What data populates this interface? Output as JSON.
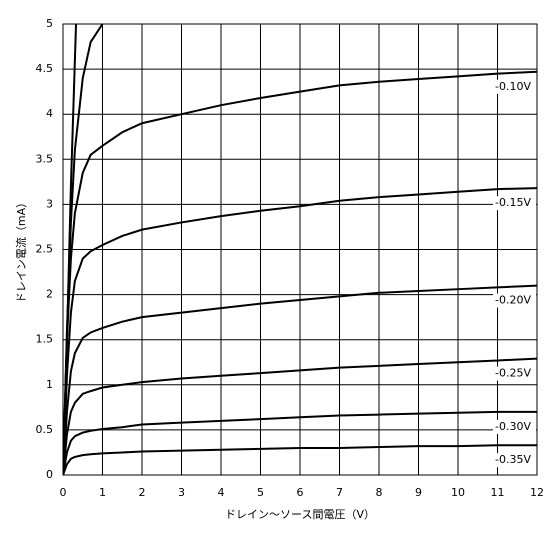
{
  "chart_data": {
    "type": "line",
    "xlabel": "ドレイン～ソース間電圧（V）",
    "ylabel": "ドレイン電流（mA）",
    "xlim": [
      0,
      12
    ],
    "ylim": [
      0,
      5
    ],
    "xticks": [
      0,
      1,
      2,
      3,
      4,
      5,
      6,
      7,
      8,
      9,
      10,
      11,
      12
    ],
    "yticks": [
      0,
      0.5,
      1,
      1.5,
      2,
      2.5,
      3,
      3.5,
      4,
      4.5,
      5
    ],
    "grid": true,
    "series": [
      {
        "color": "#000000",
        "x": [
          0,
          0.1,
          0.2,
          0.33
        ],
        "values": [
          0,
          1.5,
          3.2,
          5
        ]
      },
      {
        "color": "#000000",
        "x": [
          0,
          0.1,
          0.2,
          0.3,
          0.5,
          0.7,
          1.0
        ],
        "values": [
          0,
          1.6,
          2.8,
          3.6,
          4.4,
          4.8,
          5.0
        ]
      },
      {
        "name": "-0.10V",
        "color": "#000000",
        "x": [
          0,
          0.1,
          0.2,
          0.3,
          0.5,
          0.7,
          1,
          1.5,
          2,
          3,
          4,
          5,
          6,
          7,
          8,
          9,
          10,
          11,
          12
        ],
        "values": [
          0,
          1.5,
          2.4,
          2.9,
          3.35,
          3.55,
          3.65,
          3.8,
          3.9,
          4.0,
          4.1,
          4.18,
          4.25,
          4.32,
          4.36,
          4.39,
          4.42,
          4.45,
          4.47
        ]
      },
      {
        "name": "-0.15V",
        "color": "#000000",
        "x": [
          0,
          0.1,
          0.2,
          0.3,
          0.5,
          0.7,
          1,
          1.5,
          2,
          3,
          4,
          5,
          6,
          7,
          8,
          9,
          10,
          11,
          12
        ],
        "values": [
          0,
          1.1,
          1.8,
          2.15,
          2.4,
          2.48,
          2.55,
          2.65,
          2.72,
          2.8,
          2.87,
          2.93,
          2.98,
          3.04,
          3.08,
          3.11,
          3.14,
          3.17,
          3.18
        ]
      },
      {
        "name": "-0.20V",
        "color": "#000000",
        "x": [
          0,
          0.1,
          0.2,
          0.3,
          0.5,
          0.7,
          1,
          1.5,
          2,
          3,
          4,
          5,
          6,
          7,
          8,
          9,
          10,
          11,
          12
        ],
        "values": [
          0,
          0.7,
          1.15,
          1.35,
          1.52,
          1.58,
          1.63,
          1.7,
          1.75,
          1.8,
          1.85,
          1.9,
          1.94,
          1.98,
          2.02,
          2.04,
          2.06,
          2.08,
          2.1
        ]
      },
      {
        "name": "-0.25V",
        "color": "#000000",
        "x": [
          0,
          0.1,
          0.2,
          0.3,
          0.5,
          0.7,
          1,
          1.5,
          2,
          3,
          4,
          5,
          6,
          7,
          8,
          9,
          10,
          11,
          12
        ],
        "values": [
          0,
          0.45,
          0.7,
          0.8,
          0.9,
          0.93,
          0.97,
          1.0,
          1.03,
          1.07,
          1.1,
          1.13,
          1.16,
          1.19,
          1.21,
          1.23,
          1.25,
          1.27,
          1.29
        ]
      },
      {
        "name": "-0.30V",
        "color": "#000000",
        "x": [
          0,
          0.1,
          0.2,
          0.3,
          0.5,
          0.7,
          1,
          1.5,
          2,
          3,
          4,
          5,
          6,
          7,
          8,
          9,
          10,
          11,
          12
        ],
        "values": [
          0,
          0.25,
          0.38,
          0.43,
          0.47,
          0.49,
          0.51,
          0.53,
          0.56,
          0.58,
          0.6,
          0.62,
          0.64,
          0.66,
          0.67,
          0.68,
          0.69,
          0.7,
          0.7
        ]
      },
      {
        "name": "-0.35V",
        "color": "#000000",
        "x": [
          0,
          0.1,
          0.2,
          0.3,
          0.5,
          0.7,
          1,
          1.5,
          2,
          3,
          4,
          5,
          6,
          7,
          8,
          9,
          10,
          11,
          12
        ],
        "values": [
          0,
          0.12,
          0.18,
          0.2,
          0.22,
          0.23,
          0.24,
          0.25,
          0.26,
          0.27,
          0.28,
          0.29,
          0.3,
          0.3,
          0.31,
          0.32,
          0.32,
          0.33,
          0.33
        ]
      }
    ]
  }
}
